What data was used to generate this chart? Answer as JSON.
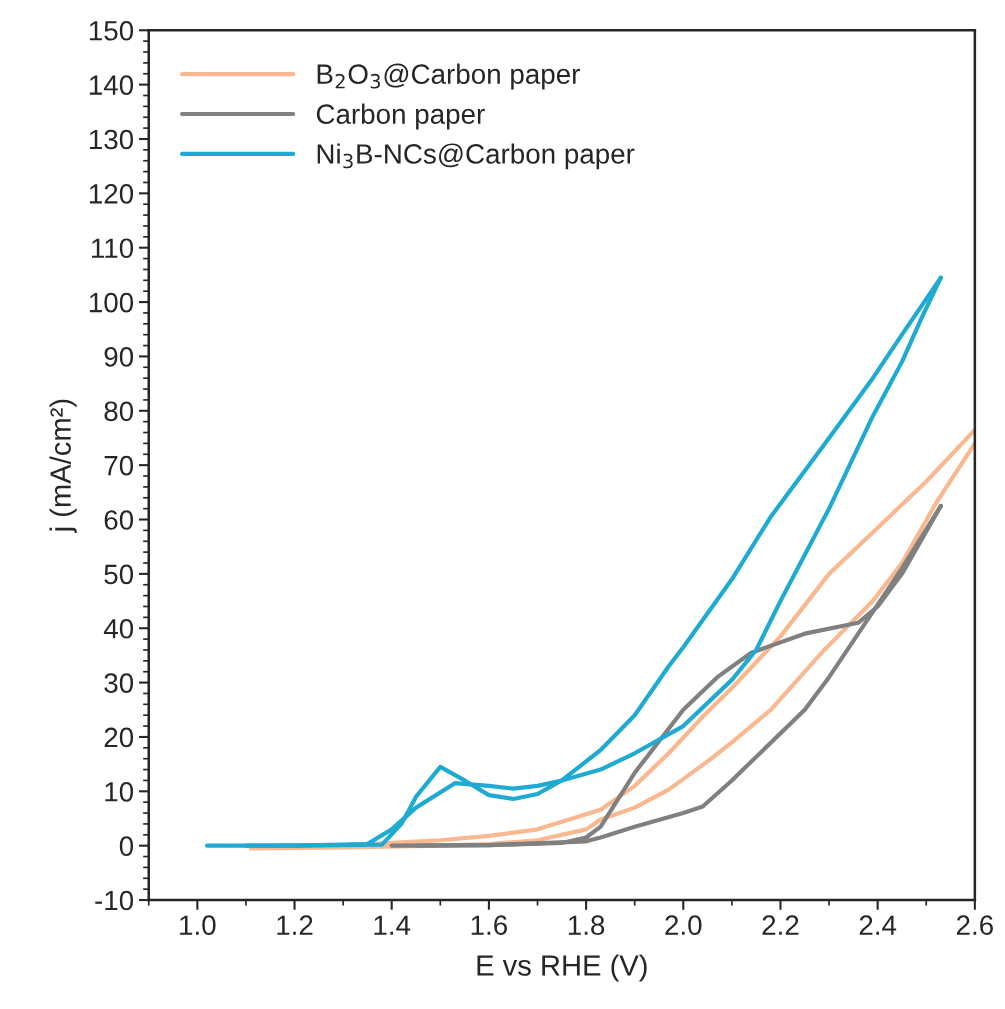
{
  "chart_data": {
    "type": "line",
    "xlabel": "E vs RHE (V)",
    "ylabel": "j (mA/cm²)",
    "xlim": [
      0.9,
      2.6
    ],
    "xticks": [
      {
        "value": 1.0,
        "label": "1.0"
      },
      {
        "value": 1.2,
        "label": "1.2"
      },
      {
        "value": 1.4,
        "label": "1.4"
      },
      {
        "value": 1.6,
        "label": "1.6"
      },
      {
        "value": 1.8,
        "label": "1.8"
      },
      {
        "value": 2.0,
        "label": "2.0"
      },
      {
        "value": 2.2,
        "label": "2.2"
      },
      {
        "value": 2.4,
        "label": "2.4"
      },
      {
        "value": 2.6,
        "label": "2.6"
      }
    ],
    "ylim": [
      -10,
      150
    ],
    "yticks": [
      -10,
      0,
      10,
      20,
      30,
      40,
      50,
      60,
      70,
      80,
      90,
      100,
      110,
      120,
      130,
      140,
      150
    ],
    "grid": false,
    "legend": "top left",
    "marker": "none",
    "line_style": "solid",
    "series": [
      {
        "name": "B$_{2}$O$_{3}$@Carbon paper",
        "color": "#f9b88f",
        "x": [
          1.11,
          1.3,
          1.5,
          1.6,
          1.7,
          1.8,
          1.83,
          1.9,
          1.97,
          2.05,
          2.1,
          2.18,
          2.29,
          2.39,
          2.45,
          2.52,
          2.6
        ],
        "values": [
          -0.5,
          -0.3,
          0,
          0.3,
          1,
          3,
          4.8,
          7,
          10.3,
          15.5,
          19,
          25,
          36,
          45,
          52,
          63,
          74
        ]
      },
      {
        "color": "#f9b88f",
        "x": [
          1.15,
          1.3,
          1.4,
          1.5,
          1.6,
          1.7,
          1.83,
          1.9,
          1.97,
          2.04,
          2.1,
          2.2,
          2.3,
          2.4,
          2.5,
          2.6
        ],
        "values": [
          0,
          0.1,
          0.5,
          1,
          1.8,
          3,
          6.6,
          11,
          17,
          23.7,
          29,
          38.5,
          50,
          58.5,
          67,
          76.5
        ]
      },
      {
        "name": "Carbon paper",
        "color": "#808080",
        "x": [
          1.4,
          1.6,
          1.8,
          1.83,
          1.9,
          2.0,
          2.04,
          2.1,
          2.25,
          2.3,
          2.39,
          2.45,
          2.53
        ],
        "values": [
          0,
          0.1,
          0.8,
          1.5,
          3.5,
          6,
          7.2,
          12,
          25,
          31,
          43,
          51,
          62.5
        ]
      },
      {
        "color": "#808080",
        "x": [
          1.45,
          1.6,
          1.75,
          1.8,
          1.83,
          1.9,
          2.0,
          2.07,
          2.14,
          2.25,
          2.36,
          2.4,
          2.45,
          2.53
        ],
        "values": [
          0,
          0.1,
          0.5,
          1.5,
          3.5,
          13.4,
          25,
          31,
          35.5,
          39,
          41,
          44,
          50,
          62.5
        ]
      },
      {
        "name": "Ni$_{3}$B-NCs@Carbon paper",
        "color": "#1eaad2",
        "x": [
          1.02,
          1.2,
          1.38,
          1.42,
          1.45,
          1.5,
          1.55,
          1.6,
          1.65,
          1.7,
          1.75,
          1.83,
          1.9,
          1.97,
          2.0,
          2.1,
          2.18,
          2.3,
          2.39,
          2.45,
          2.53
        ],
        "values": [
          0,
          0,
          0.2,
          4,
          9,
          14.5,
          12,
          9.3,
          8.6,
          9.5,
          12,
          17.6,
          24,
          33,
          36.5,
          49,
          60.5,
          75,
          86,
          94,
          104.5
        ]
      },
      {
        "color": "#1eaad2",
        "x": [
          1.1,
          1.2,
          1.35,
          1.4,
          1.45,
          1.53,
          1.6,
          1.65,
          1.7,
          1.75,
          1.83,
          1.9,
          2.0,
          2.1,
          2.15,
          2.2,
          2.3,
          2.39,
          2.45,
          2.49,
          2.53
        ],
        "values": [
          0,
          0,
          0.3,
          3,
          7,
          11.5,
          11,
          10.5,
          11,
          12,
          14,
          17,
          22,
          30.5,
          36,
          45,
          62,
          79,
          89,
          97,
          104.5
        ]
      }
    ]
  }
}
